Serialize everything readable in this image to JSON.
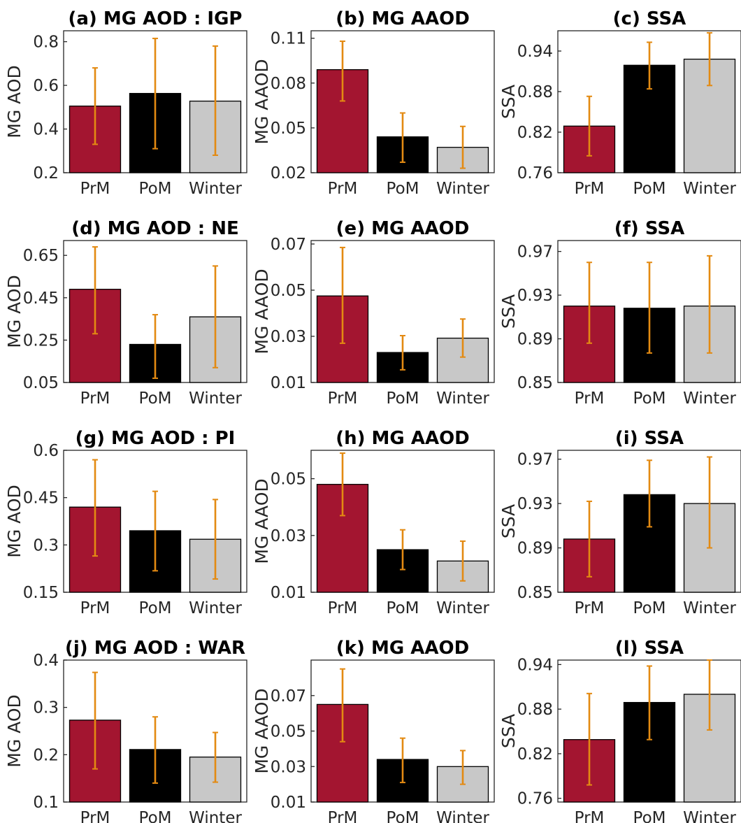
{
  "colors": {
    "PrM": "#A31530",
    "PoM": "#000000",
    "Winter": "#C8C8C8",
    "error_bar": "#E38A12",
    "axis": "#262626"
  },
  "chart_data": [
    {
      "type": "bar",
      "title": "(a) MG AOD : IGP",
      "ylabel": "MG AOD",
      "categories": [
        "PrM",
        "PoM",
        "Winter"
      ],
      "values": [
        0.505,
        0.563,
        0.528
      ],
      "error_low": [
        0.33,
        0.31,
        0.28
      ],
      "error_high": [
        0.68,
        0.815,
        0.78
      ],
      "ylim": [
        0.2,
        0.85
      ],
      "yticks": [
        0.2,
        0.4,
        0.6,
        0.8
      ],
      "ytick_labels": [
        "0.2",
        "0.4",
        "0.6",
        "0.8"
      ]
    },
    {
      "type": "bar",
      "title": "(b) MG AAOD",
      "ylabel": "MG AAOD",
      "categories": [
        "PrM",
        "PoM",
        "Winter"
      ],
      "values": [
        0.089,
        0.044,
        0.037
      ],
      "error_low": [
        0.068,
        0.027,
        0.023
      ],
      "error_high": [
        0.108,
        0.06,
        0.051
      ],
      "ylim": [
        0.02,
        0.115
      ],
      "yticks": [
        0.02,
        0.05,
        0.08,
        0.11
      ],
      "ytick_labels": [
        "0.02",
        "0.05",
        "0.08",
        "0.11"
      ]
    },
    {
      "type": "bar",
      "title": "(c) SSA",
      "ylabel": "SSA",
      "categories": [
        "PrM",
        "PoM",
        "Winter"
      ],
      "values": [
        0.829,
        0.919,
        0.928
      ],
      "error_low": [
        0.785,
        0.884,
        0.889
      ],
      "error_high": [
        0.873,
        0.953,
        0.967
      ],
      "ylim": [
        0.76,
        0.97
      ],
      "yticks": [
        0.76,
        0.82,
        0.88,
        0.94
      ],
      "ytick_labels": [
        "0.76",
        "0.82",
        "0.88",
        "0.94"
      ]
    },
    {
      "type": "bar",
      "title": "(d) MG AOD : NE",
      "ylabel": "MG AOD",
      "categories": [
        "PrM",
        "PoM",
        "Winter"
      ],
      "values": [
        0.49,
        0.23,
        0.36
      ],
      "error_low": [
        0.28,
        0.07,
        0.12
      ],
      "error_high": [
        0.69,
        0.37,
        0.6
      ],
      "ylim": [
        0.05,
        0.72
      ],
      "yticks": [
        0.05,
        0.25,
        0.45,
        0.65
      ],
      "ytick_labels": [
        "0.05",
        "0.25",
        "0.45",
        "0.65"
      ]
    },
    {
      "type": "bar",
      "title": "(e) MG AAOD",
      "ylabel": "MG AAOD",
      "categories": [
        "PrM",
        "PoM",
        "Winter"
      ],
      "values": [
        0.0475,
        0.023,
        0.0292
      ],
      "error_low": [
        0.027,
        0.0155,
        0.021
      ],
      "error_high": [
        0.0685,
        0.0303,
        0.0375
      ],
      "ylim": [
        0.01,
        0.0715
      ],
      "yticks": [
        0.01,
        0.03,
        0.05,
        0.07
      ],
      "ytick_labels": [
        "0.01",
        "0.03",
        "0.05",
        "0.07"
      ]
    },
    {
      "type": "bar",
      "title": "(f) SSA",
      "ylabel": "SSA",
      "categories": [
        "PrM",
        "PoM",
        "Winter"
      ],
      "values": [
        0.92,
        0.918,
        0.92
      ],
      "error_low": [
        0.886,
        0.877,
        0.877
      ],
      "error_high": [
        0.96,
        0.96,
        0.966
      ],
      "ylim": [
        0.85,
        0.98
      ],
      "yticks": [
        0.85,
        0.89,
        0.93,
        0.97
      ],
      "ytick_labels": [
        "0.85",
        "0.89",
        "0.93",
        "0.97"
      ]
    },
    {
      "type": "bar",
      "title": "(g) MG AOD : PI",
      "ylabel": "MG AOD",
      "categories": [
        "PrM",
        "PoM",
        "Winter"
      ],
      "values": [
        0.42,
        0.345,
        0.318
      ],
      "error_low": [
        0.265,
        0.218,
        0.192
      ],
      "error_high": [
        0.57,
        0.47,
        0.444
      ],
      "ylim": [
        0.15,
        0.6
      ],
      "yticks": [
        0.15,
        0.3,
        0.45,
        0.6
      ],
      "ytick_labels": [
        "0.15",
        "0.3",
        "0.45",
        "0.6"
      ]
    },
    {
      "type": "bar",
      "title": "(h) MG AAOD",
      "ylabel": "MG AAOD",
      "categories": [
        "PrM",
        "PoM",
        "Winter"
      ],
      "values": [
        0.048,
        0.025,
        0.021
      ],
      "error_low": [
        0.037,
        0.018,
        0.014
      ],
      "error_high": [
        0.059,
        0.032,
        0.028
      ],
      "ylim": [
        0.01,
        0.06
      ],
      "yticks": [
        0.01,
        0.03,
        0.05
      ],
      "ytick_labels": [
        "0.01",
        "0.03",
        "0.05"
      ]
    },
    {
      "type": "bar",
      "title": "(i) SSA",
      "ylabel": "SSA",
      "categories": [
        "PrM",
        "PoM",
        "Winter"
      ],
      "values": [
        0.898,
        0.938,
        0.93
      ],
      "error_low": [
        0.864,
        0.909,
        0.89
      ],
      "error_high": [
        0.932,
        0.969,
        0.972
      ],
      "ylim": [
        0.85,
        0.978
      ],
      "yticks": [
        0.85,
        0.89,
        0.93,
        0.97
      ],
      "ytick_labels": [
        "0.85",
        "0.89",
        "0.93",
        "0.97"
      ]
    },
    {
      "type": "bar",
      "title": "(j) MG AOD : WAR",
      "ylabel": "MG AOD",
      "categories": [
        "PrM",
        "PoM",
        "Winter"
      ],
      "values": [
        0.273,
        0.211,
        0.195
      ],
      "error_low": [
        0.17,
        0.14,
        0.142
      ],
      "error_high": [
        0.374,
        0.28,
        0.247
      ],
      "ylim": [
        0.1,
        0.4
      ],
      "yticks": [
        0.1,
        0.2,
        0.3,
        0.4
      ],
      "ytick_labels": [
        "0.1",
        "0.2",
        "0.3",
        "0.4"
      ]
    },
    {
      "type": "bar",
      "title": "(k) MG AAOD",
      "ylabel": "MG AAOD",
      "categories": [
        "PrM",
        "PoM",
        "Winter"
      ],
      "values": [
        0.065,
        0.034,
        0.03
      ],
      "error_low": [
        0.044,
        0.021,
        0.02
      ],
      "error_high": [
        0.085,
        0.046,
        0.039
      ],
      "ylim": [
        0.01,
        0.09
      ],
      "yticks": [
        0.01,
        0.03,
        0.05,
        0.07
      ],
      "ytick_labels": [
        "0.01",
        "0.03",
        "0.05",
        "0.07"
      ]
    },
    {
      "type": "bar",
      "title": "(l) SSA",
      "ylabel": "SSA",
      "categories": [
        "PrM",
        "PoM",
        "Winter"
      ],
      "values": [
        0.839,
        0.889,
        0.9
      ],
      "error_low": [
        0.778,
        0.839,
        0.852
      ],
      "error_high": [
        0.901,
        0.938,
        0.946
      ],
      "ylim": [
        0.755,
        0.946
      ],
      "yticks": [
        0.76,
        0.82,
        0.88,
        0.94
      ],
      "ytick_labels": [
        "0.76",
        "0.82",
        "0.88",
        "0.94"
      ]
    }
  ]
}
